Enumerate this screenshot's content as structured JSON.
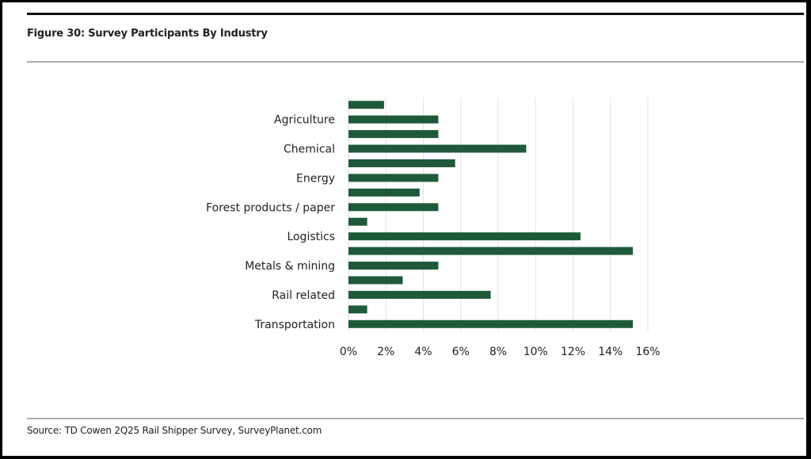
{
  "figure": {
    "title": "Figure 30: Survey Participants By Industry",
    "source": "Source: TD Cowen 2Q25 Rail Shipper Survey, SurveyPlanet.com"
  },
  "colors": {
    "bar": "#1e5a3a",
    "grid": "#e2e2e2",
    "text": "#222222"
  },
  "chart_data": {
    "type": "bar",
    "orientation": "horizontal",
    "title": "Survey Participants By Industry",
    "xlabel": "",
    "ylabel": "",
    "xlim": [
      0,
      16
    ],
    "x_ticks": [
      "0%",
      "2%",
      "4%",
      "6%",
      "8%",
      "10%",
      "12%",
      "14%",
      "16%"
    ],
    "grid": "vertical",
    "categories": [
      "",
      "Agriculture",
      "",
      "Chemical",
      "",
      "Energy",
      "",
      "Forest products / paper",
      "",
      "Logistics",
      "",
      "Metals & mining",
      "",
      "Rail related",
      "",
      "Transportation"
    ],
    "values": [
      1.9,
      4.8,
      4.8,
      9.5,
      5.7,
      4.8,
      3.8,
      4.8,
      1.0,
      12.4,
      15.2,
      4.8,
      2.9,
      7.6,
      1.0,
      15.2
    ],
    "unit": "%",
    "legend": "none"
  }
}
